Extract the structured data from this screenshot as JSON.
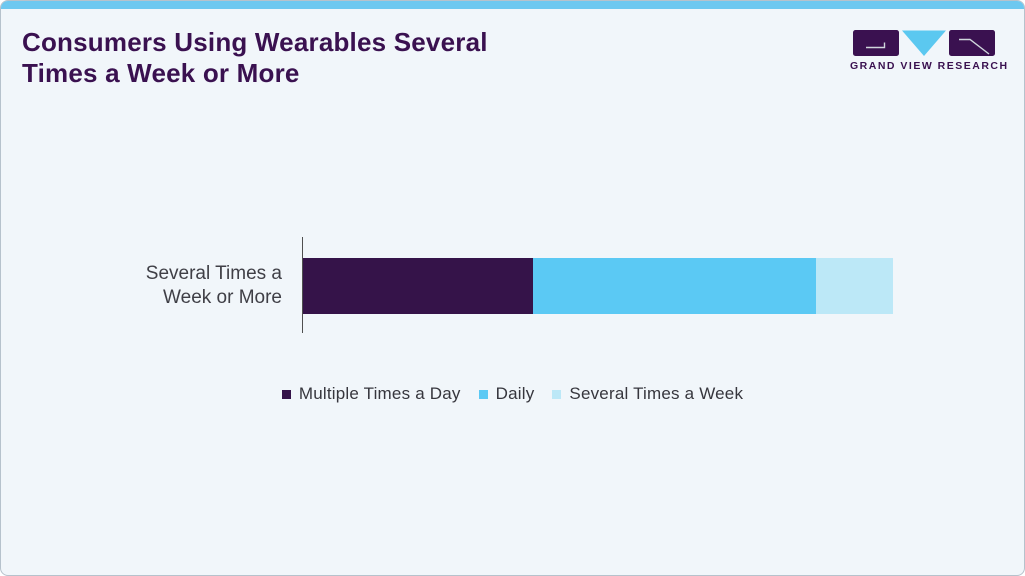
{
  "header": {
    "title": "Consumers Using Wearables Several\nTimes a Week or More",
    "logo_text": "GRAND VIEW RESEARCH"
  },
  "colors": {
    "accent": "#6dc8f0",
    "card_bg": "#f1f6fa",
    "card_border": "#b6c2cc",
    "title_color": "#3a1150",
    "axis_color": "#4f4f4f",
    "label_color": "#3f3f46",
    "legend_color": "#36363d",
    "logo_purple": "#3a1150",
    "logo_blue": "#5bc8f0"
  },
  "chart_data": {
    "type": "bar",
    "orientation": "horizontal",
    "stacked": true,
    "title": "Consumers Using Wearables Several Times a Week or More",
    "categories": [
      "Several Times a Week or More"
    ],
    "category_label_display": "Several Times a\nWeek or More",
    "series": [
      {
        "name": "Multiple Times a Day",
        "values": [
          39
        ],
        "color": "#351349"
      },
      {
        "name": "Daily",
        "values": [
          48
        ],
        "color": "#5bc9f4"
      },
      {
        "name": "Several Times a Week",
        "values": [
          13
        ],
        "color": "#bce8f7"
      }
    ],
    "values_are_estimates_from_bar_widths": true,
    "xlabel": "",
    "ylabel": "",
    "legend_position": "bottom",
    "grid": false
  }
}
